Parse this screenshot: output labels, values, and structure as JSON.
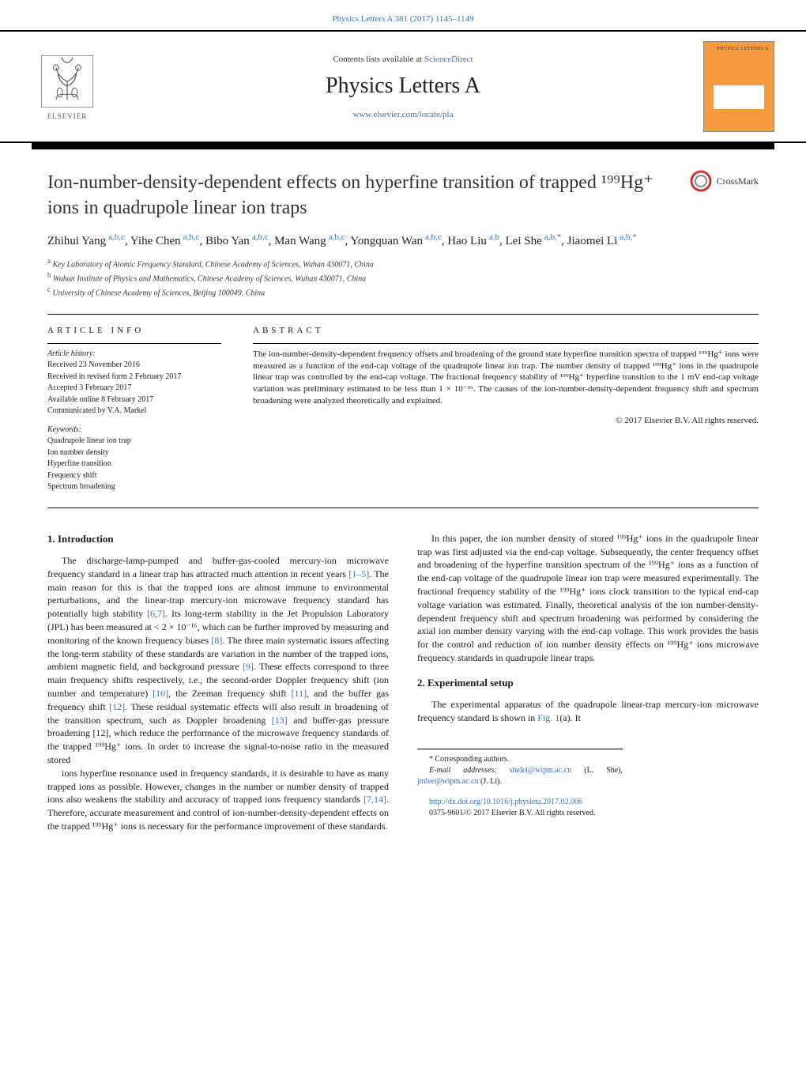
{
  "top_citation": "Physics Letters A 381 (2017) 1145–1149",
  "top_citation_url": "#",
  "header": {
    "contents_prefix": "Contents lists available at ",
    "contents_link_text": "ScienceDirect",
    "journal_name": "Physics Letters A",
    "journal_link_text": "www.elsevier.com/locate/pla",
    "elsevier_label": "ELSEVIER",
    "cover_text": "PHYSICS LETTERS A"
  },
  "crossmark_label": "CrossMark",
  "title": "Ion-number-density-dependent effects on hyperfine transition of trapped ¹⁹⁹Hg⁺ ions in quadrupole linear ion traps",
  "authors_html": "Zhihui Yang",
  "authors": [
    {
      "name": "Zhihui Yang",
      "aff": "a,b,c"
    },
    {
      "name": "Yihe Chen",
      "aff": "a,b,c"
    },
    {
      "name": "Bibo Yan",
      "aff": "a,b,c"
    },
    {
      "name": "Man Wang",
      "aff": "a,b,c"
    },
    {
      "name": "Yongquan Wan",
      "aff": "a,b,c"
    },
    {
      "name": "Hao Liu",
      "aff": "a,b"
    },
    {
      "name": "Lei She",
      "aff": "a,b,*"
    },
    {
      "name": "Jiaomei Li",
      "aff": "a,b,*"
    }
  ],
  "affiliations": [
    {
      "sup": "a",
      "text": "Key Laboratory of Atomic Frequency Standard, Chinese Academy of Sciences, Wuhan 430071, China"
    },
    {
      "sup": "b",
      "text": "Wuhan Institute of Physics and Mathematics, Chinese Academy of Sciences, Wuhan 430071, China"
    },
    {
      "sup": "c",
      "text": "University of Chinese Academy of Sciences, Beijing 100049, China"
    }
  ],
  "article_info": {
    "heading": "article info",
    "history_label": "Article history:",
    "history": [
      "Received 23 November 2016",
      "Received in revised form 2 February 2017",
      "Accepted 3 February 2017",
      "Available online 8 February 2017",
      "Communicated by V.A. Markel"
    ],
    "keywords_label": "Keywords:",
    "keywords": [
      "Quadrupole linear ion trap",
      "Ion number density",
      "Hyperfine transition",
      "Frequency shift",
      "Spectrum broadening"
    ]
  },
  "abstract": {
    "heading": "abstract",
    "text": "The ion-number-density-dependent frequency offsets and broadening of the ground state hyperfine transition spectra of trapped ¹⁹⁹Hg⁺ ions were measured as a function of the end-cap voltage of the quadrupole linear ion trap. The number density of trapped ¹⁹⁹Hg⁺ ions in the quadrupole linear trap was controlled by the end-cap voltage. The fractional frequency stability of ¹⁹⁹Hg⁺ hyperfine transition to the 1 mV end-cap voltage variation was preliminary estimated to be less than 1 × 10⁻¹⁶. The causes of the ion-number-density-dependent frequency shift and spectrum broadening were analyzed theoretically and explained.",
    "copyright": "© 2017 Elsevier B.V. All rights reserved."
  },
  "body": {
    "section1_heading": "1. Introduction",
    "section1_p1": "The discharge-lamp-pumped and buffer-gas-cooled mercury-ion microwave frequency standard in a linear trap has attracted much attention in recent years [1–5]. The main reason for this is that the trapped ions are almost immune to environmental perturbations, and the linear-trap mercury-ion microwave frequency standard has potentially high stability [6,7]. Its long-term stability in the Jet Propulsion Laboratory (JPL) has been measured at < 2 × 10⁻¹⁶, which can be further improved by measuring and monitoring of the known frequency biases [8]. The three main systematic issues affecting the long-term stability of these standards are variation in the number of the trapped ions, ambient magnetic field, and background pressure [9]. These effects correspond to three main frequency shifts respectively, i.e., the second-order Doppler frequency shift (ion number and temperature) [10], the Zeeman frequency shift [11], and the buffer gas frequency shift [12]. These residual systematic effects will also result in broadening of the transition spectrum, such as Doppler broadening [13] and buffer-gas pressure broadening [12], which reduce the performance of the microwave frequency standards of the trapped ¹⁹⁹Hg⁺ ions. In order to increase the signal-to-noise ratio in the measured stored",
    "refs_p1": {
      "r1": "[1–5]",
      "r2": "[6,7]",
      "r3": "[8]",
      "r4": "[9]",
      "r5": "[10]",
      "r6": "[11]",
      "r7": "[12]",
      "r8": "[13]",
      "r9": "[12]"
    },
    "section1_p2": "ions hyperfine resonance used in frequency standards, it is desirable to have as many trapped ions as possible. However, changes in the number or number density of trapped ions also weakens the stability and accuracy of trapped ions frequency standards [7,14]. Therefore, accurate measurement and control of ion-number-density-dependent effects on the trapped ¹⁹⁹Hg⁺ ions is necessary for the performance improvement of these standards.",
    "refs_p2": {
      "r1": "[7,14]"
    },
    "section1_p3": "In this paper, the ion number density of stored ¹⁹⁹Hg⁺ ions in the quadrupole linear trap was first adjusted via the end-cap voltage. Subsequently, the center frequency offset and broadening of the hyperfine transition spectrum of the ¹⁹⁹Hg⁺ ions as a function of the end-cap voltage of the quadrupole linear ion trap were measured experimentally. The fractional frequency stability of the ¹⁹⁹Hg⁺ ions clock transition to the typical end-cap voltage variation was estimated. Finally, theoretical analysis of the ion number-density-dependent frequency shift and spectrum broadening was performed by considering the axial ion number density varying with the end-cap voltage. This work provides the basis for the control and reduction of ion number density effects on ¹⁹⁹Hg⁺ ions microwave frequency standards in quadrupole linear traps.",
    "section2_heading": "2. Experimental setup",
    "section2_p1": "The experimental apparatus of the quadrupole linear-trap mercury-ion microwave frequency standard is shown in Fig. 1(a). It",
    "refs_s2": {
      "r1": "Fig. 1"
    }
  },
  "footnotes": {
    "corr_label": "* Corresponding authors.",
    "email_label": "E-mail addresses: ",
    "email1_text": "shelei@wipm.ac.cn",
    "email1_person": " (L. She), ",
    "email2_text": "jmlee@wipm.ac.cn",
    "email2_person": " (J. Li)."
  },
  "bottom": {
    "doi_text": "http://dx.doi.org/10.1016/j.physleta.2017.02.006",
    "issn_line": "0375-9601/© 2017 Elsevier B.V. All rights reserved."
  },
  "colors": {
    "link": "#3a6fb7",
    "text": "#1a1a1a",
    "cover_bg": "#f49b42"
  }
}
